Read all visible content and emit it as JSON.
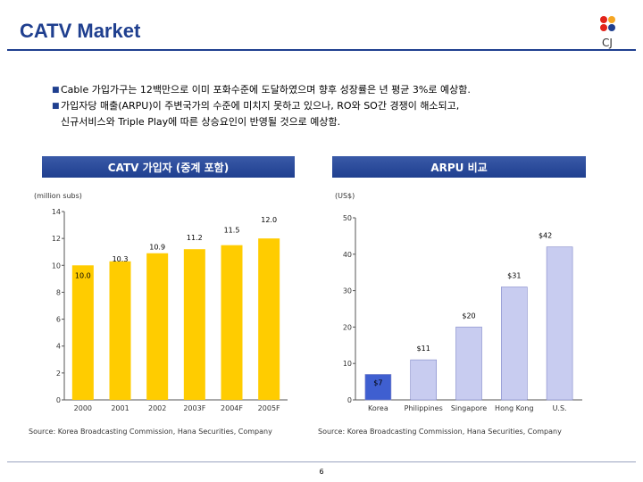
{
  "header": {
    "title": "CATV Market",
    "logo_text": "CJ"
  },
  "bullets": [
    "Cable 가입가구는 12백만으로 이미 포화수준에 도달하였으며 향후 성장률은 년 평균 3%로 예상함.",
    "가입자당 매출(ARPU)이 주변국가의 수준에 미치지 못하고 있으나, RO와 SO간 경쟁이 해소되고,",
    "신규서비스와 Triple Play에 따른 상승요인이 반영될 것으로 예상함."
  ],
  "footer": {
    "page_number": "6"
  },
  "chart_data": [
    {
      "type": "bar",
      "title": "CATV 가입자 (중계 포함)",
      "ylabel": "(million subs)",
      "categories": [
        "2000",
        "2001",
        "2002",
        "2003F",
        "2004F",
        "2005F"
      ],
      "values": [
        10.0,
        10.3,
        10.9,
        11.2,
        11.5,
        12.0
      ],
      "value_labels": [
        "10.0",
        "10.3",
        "10.9",
        "11.2",
        "11.5",
        "12.0"
      ],
      "ylim": [
        0,
        14
      ],
      "yticks": [
        "0",
        "2",
        "4",
        "6",
        "8",
        "10",
        "12",
        "14"
      ],
      "bar_color": "#ffcc00",
      "source": "Source: Korea Broadcasting Commission, Hana Securities, Company"
    },
    {
      "type": "bar",
      "title": "ARPU 비교",
      "ylabel": "(US$)",
      "categories": [
        "Korea",
        "Philippines",
        "Singapore",
        "Hong Kong",
        "U.S."
      ],
      "values": [
        7,
        11,
        20,
        31,
        42
      ],
      "value_labels": [
        "$7",
        "$11",
        "$20",
        "$31",
        "$42"
      ],
      "ylim": [
        0,
        50
      ],
      "yticks": [
        "0",
        "10",
        "20",
        "30",
        "40",
        "50"
      ],
      "bar_colors": [
        "#3f5fd0",
        "#c8ccf0",
        "#c8ccf0",
        "#c8ccf0",
        "#c8ccf0"
      ],
      "source": "Source: Korea Broadcasting Commission, Hana Securities, Company"
    }
  ]
}
